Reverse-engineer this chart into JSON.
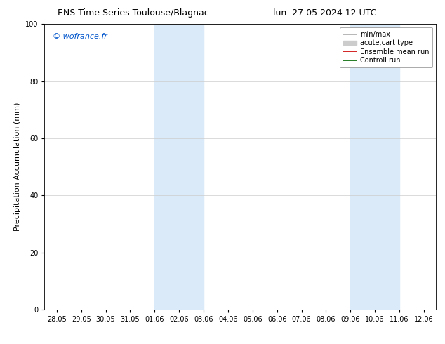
{
  "title_left": "ENS Time Series Toulouse/Blagnac",
  "title_right": "lun. 27.05.2024 12 UTC",
  "ylabel": "Precipitation Accumulation (mm)",
  "ylim": [
    0,
    100
  ],
  "yticks": [
    0,
    20,
    40,
    60,
    80,
    100
  ],
  "watermark": "© wofrance.fr",
  "watermark_color": "#0055cc",
  "x_tick_labels": [
    "28.05",
    "29.05",
    "30.05",
    "31.05",
    "01.06",
    "02.06",
    "03.06",
    "04.06",
    "05.06",
    "06.06",
    "07.06",
    "08.06",
    "09.06",
    "10.06",
    "11.06",
    "12.06"
  ],
  "shaded_regions": [
    {
      "xmin": 4,
      "xmax": 6,
      "color": "#daeaf8"
    },
    {
      "xmin": 12,
      "xmax": 14,
      "color": "#daeaf8"
    }
  ],
  "legend_entries": [
    {
      "label": "min/max",
      "color": "#aaaaaa",
      "lw": 1.2,
      "ls": "-",
      "type": "line"
    },
    {
      "label": "acute;cart type",
      "color": "#cccccc",
      "lw": 5,
      "ls": "-",
      "type": "patch"
    },
    {
      "label": "Ensemble mean run",
      "color": "#cc0000",
      "lw": 1.2,
      "ls": "-",
      "type": "line"
    },
    {
      "label": "Controll run",
      "color": "#006600",
      "lw": 1.2,
      "ls": "-",
      "type": "line"
    }
  ],
  "background_color": "#ffffff",
  "grid_color": "#cccccc",
  "title_fontsize": 9,
  "ylabel_fontsize": 8,
  "tick_fontsize": 7,
  "watermark_fontsize": 8,
  "legend_fontsize": 7
}
